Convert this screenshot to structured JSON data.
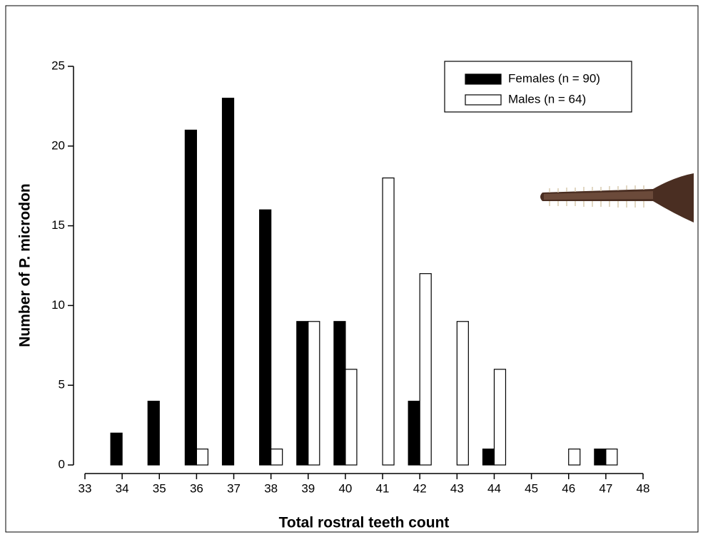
{
  "chart_data": {
    "type": "bar",
    "xlabel": "Total rostral teeth count",
    "ylabel": "Number of P. microdon",
    "x": [
      34,
      35,
      36,
      37,
      38,
      39,
      40,
      41,
      42,
      43,
      44,
      45,
      46,
      47
    ],
    "series": [
      {
        "name": "Females (n = 90)",
        "color": "#000000",
        "values": [
          2,
          4,
          21,
          23,
          16,
          9,
          9,
          0,
          4,
          0,
          1,
          0,
          0,
          1
        ]
      },
      {
        "name": "Males (n = 64)",
        "color": "#ffffff",
        "values": [
          0,
          0,
          1,
          0,
          1,
          9,
          6,
          18,
          12,
          9,
          6,
          0,
          1,
          1
        ]
      }
    ],
    "xlim": [
      33,
      48
    ],
    "xticks": [
      33,
      34,
      35,
      36,
      37,
      38,
      39,
      40,
      41,
      42,
      43,
      44,
      45,
      46,
      47,
      48
    ],
    "ylim": [
      0,
      25
    ],
    "yticks": [
      0,
      5,
      10,
      15,
      20,
      25
    ],
    "legend": "upper-right"
  }
}
